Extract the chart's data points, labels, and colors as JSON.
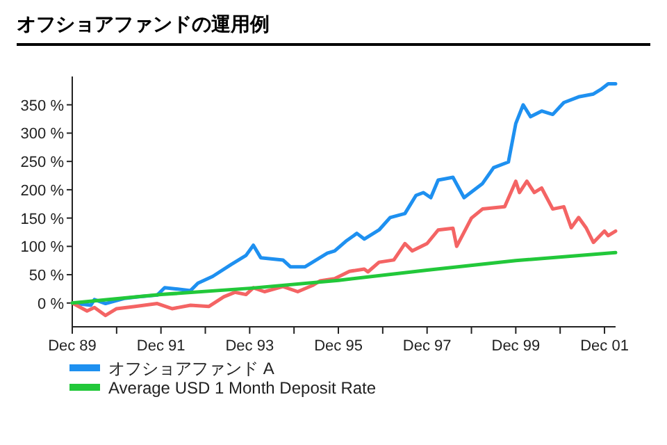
{
  "chart_data": {
    "type": "line",
    "title": "オフショアファンドの運用例",
    "legend": "bottom",
    "grid": false,
    "xlim": [
      "1989-12",
      "2002-03"
    ],
    "ylim": [
      -42,
      400
    ],
    "xticks": [
      {
        "value": "1989-12",
        "label": "Dec 89"
      },
      {
        "value": "1990-12",
        "label": null
      },
      {
        "value": "1991-12",
        "label": "Dec 91"
      },
      {
        "value": "1992-12",
        "label": null
      },
      {
        "value": "1993-12",
        "label": "Dec 93"
      },
      {
        "value": "1994-12",
        "label": null
      },
      {
        "value": "1995-12",
        "label": "Dec 95"
      },
      {
        "value": "1996-12",
        "label": null
      },
      {
        "value": "1997-12",
        "label": "Dec 97"
      },
      {
        "value": "1998-12",
        "label": null
      },
      {
        "value": "1999-12",
        "label": "Dec 99"
      },
      {
        "value": "2000-12",
        "label": null
      },
      {
        "value": "2001-12",
        "label": "Dec 01"
      }
    ],
    "yticks": [
      {
        "value": 0,
        "label": "0 %"
      },
      {
        "value": 50,
        "label": "50 %"
      },
      {
        "value": 100,
        "label": "100 %"
      },
      {
        "value": 150,
        "label": "150 %"
      },
      {
        "value": 200,
        "label": "200 %"
      },
      {
        "value": 250,
        "label": "250 %"
      },
      {
        "value": 300,
        "label": "300 %"
      },
      {
        "value": 350,
        "label": "350 %"
      }
    ],
    "series": [
      {
        "name": "オフショアファンド A",
        "color": "#1e90f0",
        "x": [
          "1989-12",
          "1990-05",
          "1990-06",
          "1990-09",
          "1991-02",
          "1991-06",
          "1991-11",
          "1992-01",
          "1992-04",
          "1992-08",
          "1992-10",
          "1993-02",
          "1993-07",
          "1993-11",
          "1994-01",
          "1994-03",
          "1994-09",
          "1994-11",
          "1995-03",
          "1995-06",
          "1995-09",
          "1995-11",
          "1996-02",
          "1996-05",
          "1996-07",
          "1996-11",
          "1997-02",
          "1997-06",
          "1997-09",
          "1997-11",
          "1998-01",
          "1998-03",
          "1998-07",
          "1998-10",
          "1999-03",
          "1999-06",
          "1999-10",
          "1999-12",
          "2000-02",
          "2000-04",
          "2000-07",
          "2000-10",
          "2001-01",
          "2001-05",
          "2001-09",
          "2001-11",
          "2002-01",
          "2002-03"
        ],
        "values": [
          0,
          -4,
          6,
          -1,
          8,
          11,
          14,
          27,
          25,
          22,
          35,
          47,
          68,
          84,
          102,
          80,
          76,
          64,
          64,
          76,
          88,
          92,
          109,
          123,
          113,
          129,
          151,
          158,
          190,
          195,
          186,
          217,
          222,
          186,
          211,
          239,
          249,
          317,
          350,
          329,
          339,
          333,
          354,
          364,
          369,
          377,
          387,
          387
        ]
      },
      {
        "color": "#f46464",
        "x": [
          "1989-12",
          "1990-04",
          "1990-06",
          "1990-09",
          "1990-12",
          "1991-05",
          "1991-11",
          "1992-03",
          "1992-08",
          "1993-01",
          "1993-05",
          "1993-08",
          "1993-11",
          "1994-01",
          "1994-04",
          "1994-09",
          "1995-01",
          "1995-05",
          "1995-07",
          "1995-11",
          "1996-03",
          "1996-07",
          "1996-08",
          "1996-11",
          "1997-03",
          "1997-06",
          "1997-08",
          "1997-12",
          "1998-03",
          "1998-07",
          "1998-08",
          "1998-12",
          "1999-03",
          "1999-09",
          "1999-12",
          "2000-01",
          "2000-03",
          "2000-05",
          "2000-07",
          "2000-10",
          "2001-01",
          "2001-03",
          "2001-05",
          "2001-07",
          "2001-09",
          "2001-12",
          "2002-01",
          "2002-03"
        ],
        "values": [
          0,
          -14,
          -8,
          -22,
          -10,
          -6,
          -1,
          -10,
          -4,
          -6,
          11,
          19,
          15,
          27,
          20,
          29,
          20,
          31,
          39,
          43,
          56,
          60,
          55,
          72,
          76,
          105,
          92,
          105,
          129,
          132,
          100,
          150,
          166,
          170,
          215,
          195,
          215,
          195,
          203,
          166,
          170,
          133,
          151,
          133,
          107,
          127,
          119,
          127
        ]
      },
      {
        "name": "Average USD 1 Month Deposit Rate",
        "color": "#22c83a",
        "x": [
          "1989-12",
          "1991-12",
          "1993-12",
          "1995-12",
          "1997-12",
          "1999-12",
          "2002-03"
        ],
        "values": [
          0,
          15,
          26,
          40,
          58,
          75,
          89
        ]
      }
    ]
  }
}
